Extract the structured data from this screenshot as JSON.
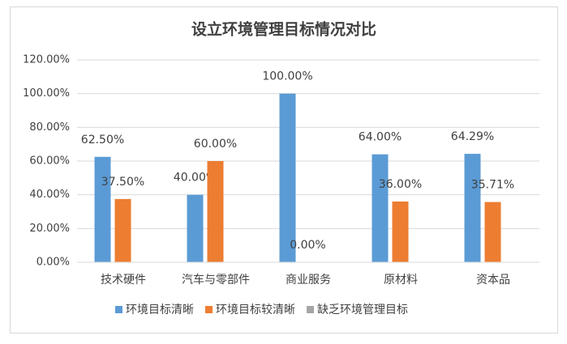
{
  "chart_data": {
    "type": "bar",
    "title": "设立环境管理目标情况对比",
    "categories": [
      "技术硬件",
      "汽车与零部件",
      "商业服务",
      "原材料",
      "资本品"
    ],
    "series": [
      {
        "name": "环境目标清晰",
        "color": "#5b9bd5",
        "values": [
          62.5,
          40,
          100,
          64,
          64.29
        ],
        "value_labels": [
          "62.50%",
          "40.00%",
          "100.00%",
          "64.00%",
          "64.29%"
        ]
      },
      {
        "name": "环境目标较清晰",
        "color": "#ed7d31",
        "values": [
          37.5,
          60,
          0,
          36,
          35.71
        ],
        "value_labels": [
          "37.50%",
          "60.00%",
          "0.00%",
          "36.00%",
          "35.71%"
        ]
      },
      {
        "name": "缺乏环境管理目标",
        "color": "#a5a5a5",
        "values": [
          null,
          null,
          null,
          null,
          null
        ]
      }
    ],
    "ylim": [
      0,
      120
    ],
    "yticks": [
      {
        "value": 0,
        "label": "0.00%"
      },
      {
        "value": 20,
        "label": "20.00%"
      },
      {
        "value": 40,
        "label": "40.00%"
      },
      {
        "value": 60,
        "label": "60.00%"
      },
      {
        "value": 80,
        "label": "80.00%"
      },
      {
        "value": 100,
        "label": "100.00%"
      },
      {
        "value": 120,
        "label": "120.00%"
      }
    ],
    "grid": true
  }
}
